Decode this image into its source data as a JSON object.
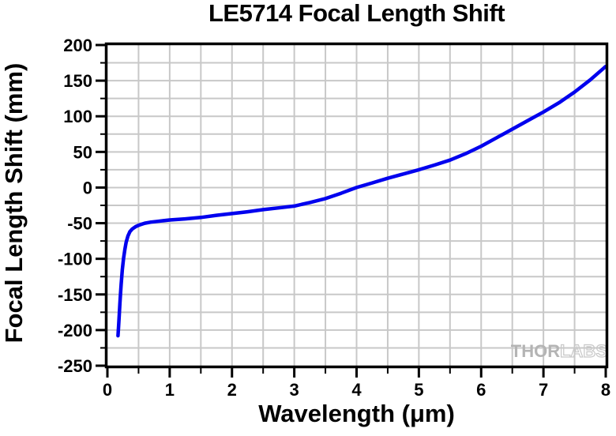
{
  "chart_data": {
    "type": "line",
    "title": "LE5714 Focal Length Shift",
    "xlabel": "Wavelength (μm)",
    "ylabel": "Focal Length Shift (mm)",
    "xlim": [
      0,
      8
    ],
    "ylim": [
      -250,
      200
    ],
    "x_major_ticks": [
      0,
      1,
      2,
      3,
      4,
      5,
      6,
      7,
      8
    ],
    "y_major_ticks": [
      200,
      150,
      100,
      50,
      0,
      -50,
      -100,
      -150,
      -200,
      -250
    ],
    "x_minor_step": 0.5,
    "y_minor_step": 25,
    "grid": "major and minor gridlines on",
    "grid_color": "#c8c8c8",
    "axis_color": "#000000",
    "line_color": "#0000EE",
    "line_width": 4.5,
    "legend": "none",
    "series": [
      {
        "name": "LE5714 focal length shift",
        "points": [
          [
            0.17,
            -208
          ],
          [
            0.18,
            -194
          ],
          [
            0.19,
            -179
          ],
          [
            0.2,
            -163
          ],
          [
            0.21,
            -149
          ],
          [
            0.22,
            -136
          ],
          [
            0.24,
            -115
          ],
          [
            0.26,
            -99
          ],
          [
            0.28,
            -87
          ],
          [
            0.3,
            -77
          ],
          [
            0.33,
            -68
          ],
          [
            0.36,
            -62
          ],
          [
            0.4,
            -58
          ],
          [
            0.45,
            -55
          ],
          [
            0.5,
            -53
          ],
          [
            0.55,
            -51.5
          ],
          [
            0.6,
            -50
          ],
          [
            0.7,
            -48.5
          ],
          [
            0.8,
            -47.5
          ],
          [
            0.9,
            -46.5
          ],
          [
            1.0,
            -45.5
          ],
          [
            1.25,
            -44
          ],
          [
            1.5,
            -42
          ],
          [
            1.75,
            -39
          ],
          [
            2.0,
            -36.5
          ],
          [
            2.25,
            -34
          ],
          [
            2.5,
            -31
          ],
          [
            2.75,
            -28.5
          ],
          [
            3.0,
            -26
          ],
          [
            3.25,
            -21
          ],
          [
            3.5,
            -15.5
          ],
          [
            3.75,
            -8
          ],
          [
            4.0,
            0
          ],
          [
            4.25,
            6.5
          ],
          [
            4.5,
            13
          ],
          [
            4.75,
            19
          ],
          [
            5.0,
            25
          ],
          [
            5.25,
            31.5
          ],
          [
            5.5,
            38.5
          ],
          [
            5.75,
            47.5
          ],
          [
            6.0,
            58
          ],
          [
            6.25,
            70
          ],
          [
            6.5,
            82
          ],
          [
            6.75,
            94
          ],
          [
            7.0,
            106
          ],
          [
            7.25,
            119
          ],
          [
            7.5,
            134
          ],
          [
            7.75,
            151
          ],
          [
            8.0,
            170
          ]
        ]
      }
    ]
  },
  "watermark": {
    "text_bold": "THOR",
    "text_outline": "LABS",
    "fill_color": "#b4b4b4",
    "outline_color": "#c8c8c8"
  }
}
